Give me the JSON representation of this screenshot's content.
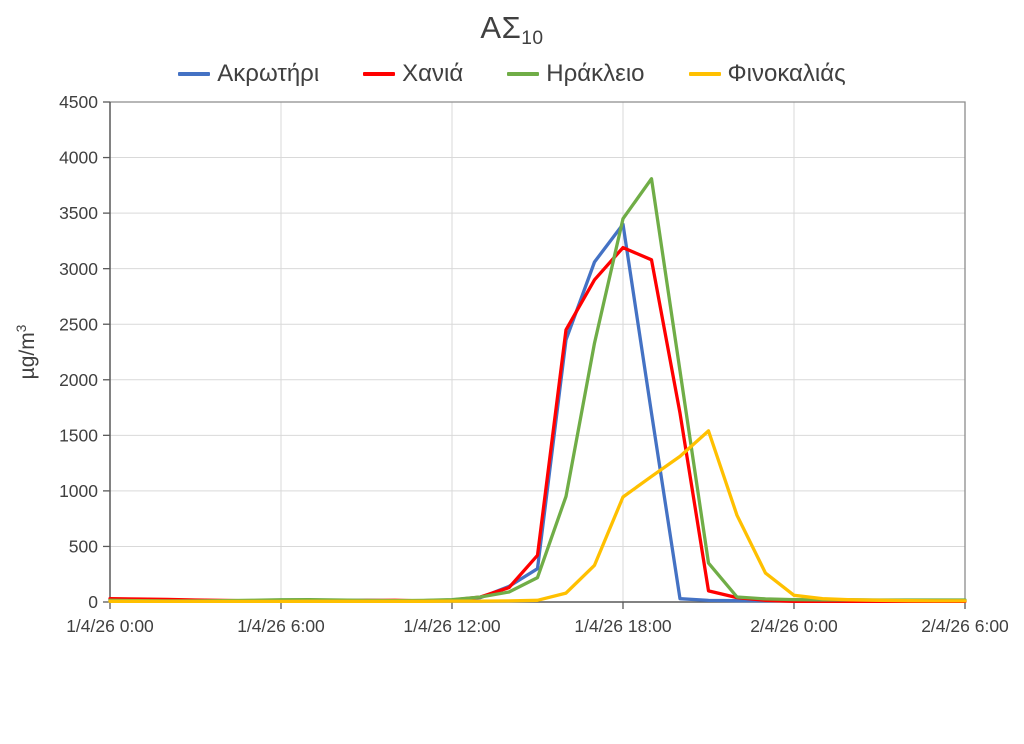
{
  "title": {
    "main": "ΑΣ",
    "sub": "10"
  },
  "ylabel": {
    "main": "µg/m",
    "sup": "3"
  },
  "colors": {
    "grid": "#D9D9D9",
    "axis": "#595959",
    "border": "#8C8C8C",
    "tick_text": "#404040"
  },
  "chart_data": {
    "type": "line",
    "title": "ΑΣ10",
    "ylabel": "µg/m3",
    "xlabel": "",
    "grid": true,
    "legend_position": "top",
    "ylim": [
      0,
      4500
    ],
    "y_tick_step": 500,
    "x_hours": [
      0,
      1,
      2,
      3,
      4,
      5,
      6,
      7,
      8,
      9,
      10,
      11,
      12,
      13,
      14,
      15,
      16,
      17,
      18,
      19,
      20,
      21,
      22,
      23,
      24,
      25,
      26,
      27,
      28,
      29,
      30
    ],
    "x_range_hours": [
      0,
      30
    ],
    "x_tick_hours": [
      0,
      6,
      12,
      18,
      24,
      30
    ],
    "x_tick_labels": [
      "1/4/26 0:00",
      "1/4/26 6:00",
      "1/4/26 12:00",
      "1/4/26 18:00",
      "2/4/26 0:00",
      "2/4/26 6:00"
    ],
    "series": [
      {
        "name": "Ακρωτήρι",
        "color": "#4472C4",
        "values": [
          18,
          15,
          12,
          10,
          10,
          10,
          10,
          12,
          14,
          14,
          12,
          12,
          18,
          40,
          140,
          300,
          2360,
          3060,
          3400,
          1700,
          30,
          14,
          12,
          12,
          10,
          10,
          10,
          10,
          10,
          10,
          10
        ]
      },
      {
        "name": "Χανιά",
        "color": "#FF0000",
        "values": [
          30,
          27,
          23,
          18,
          14,
          10,
          8,
          8,
          10,
          14,
          15,
          10,
          18,
          45,
          130,
          420,
          2450,
          2900,
          3190,
          3080,
          1700,
          100,
          40,
          15,
          6,
          5,
          5,
          5,
          5,
          5,
          5
        ]
      },
      {
        "name": "Ηράκλειο",
        "color": "#70AD47",
        "values": [
          15,
          12,
          10,
          10,
          12,
          15,
          20,
          22,
          18,
          14,
          12,
          14,
          22,
          45,
          90,
          220,
          950,
          2330,
          3450,
          3810,
          2080,
          350,
          45,
          28,
          22,
          20,
          20,
          18,
          18,
          18,
          18
        ]
      },
      {
        "name": "Φινοκαλιάς",
        "color": "#FFC000",
        "values": [
          6,
          6,
          5,
          5,
          5,
          5,
          5,
          6,
          6,
          6,
          6,
          6,
          8,
          8,
          10,
          15,
          80,
          330,
          945,
          1130,
          1310,
          1540,
          780,
          260,
          60,
          30,
          20,
          15,
          12,
          10,
          10
        ]
      }
    ]
  }
}
